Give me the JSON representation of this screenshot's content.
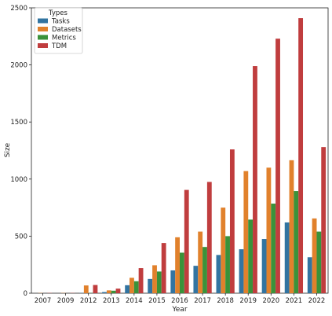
{
  "chart_data": {
    "type": "bar",
    "xlabel": "Year",
    "ylabel": "Size",
    "ylim": [
      0,
      2500
    ],
    "yticks": [
      0,
      500,
      1000,
      1500,
      2000,
      2500
    ],
    "categories": [
      "2007",
      "2009",
      "2012",
      "2013",
      "2014",
      "2015",
      "2016",
      "2017",
      "2018",
      "2019",
      "2020",
      "2021",
      "2022"
    ],
    "legend": {
      "title": "Types",
      "placement": "top-left"
    },
    "grid": false,
    "series": [
      {
        "name": "Tasks",
        "color": "#3274a1",
        "values": [
          0,
          0,
          2,
          10,
          70,
          125,
          200,
          240,
          335,
          385,
          475,
          620,
          315
        ]
      },
      {
        "name": "Datasets",
        "color": "#e1812c",
        "values": [
          2,
          2,
          68,
          25,
          135,
          245,
          490,
          540,
          750,
          1070,
          1100,
          1165,
          655
        ]
      },
      {
        "name": "Metrics",
        "color": "#3a923a",
        "values": [
          0,
          0,
          2,
          22,
          105,
          190,
          355,
          405,
          500,
          645,
          785,
          895,
          540
        ]
      },
      {
        "name": "TDM",
        "color": "#c03d3e",
        "values": [
          2,
          2,
          72,
          40,
          220,
          440,
          905,
          975,
          1260,
          1990,
          2230,
          2410,
          1280
        ]
      }
    ]
  }
}
